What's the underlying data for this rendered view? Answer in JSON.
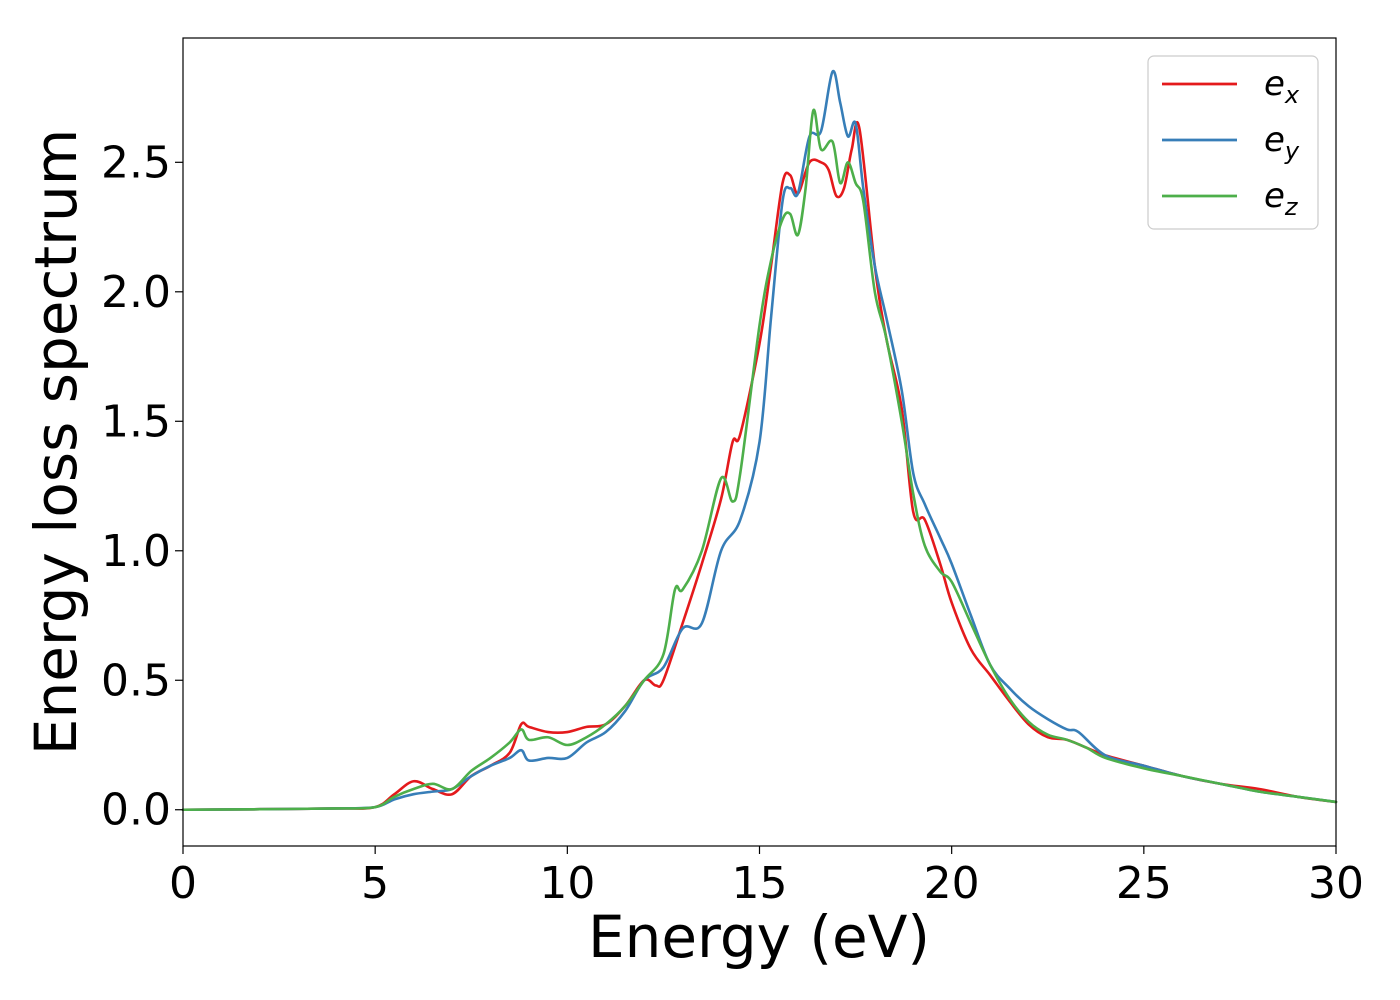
{
  "chart_data": {
    "type": "line",
    "title": "",
    "xlabel": "Energy (eV)",
    "ylabel": "Energy loss spectrum",
    "xlim": [
      0,
      30
    ],
    "ylim": [
      -0.14,
      2.98
    ],
    "xticks": [
      0,
      5,
      10,
      15,
      20,
      25,
      30
    ],
    "xtick_labels": [
      "0",
      "5",
      "10",
      "15",
      "20",
      "25",
      "30"
    ],
    "yticks": [
      0.0,
      0.5,
      1.0,
      1.5,
      2.0,
      2.5
    ],
    "ytick_labels": [
      "0.0",
      "0.5",
      "1.0",
      "1.5",
      "2.0",
      "2.5"
    ],
    "grid": false,
    "legend_position": "top-right",
    "series": [
      {
        "name": "e_x",
        "label_base": "e",
        "label_sub": "x",
        "color": "#e41a1c",
        "x": [
          0,
          2,
          4,
          5,
          5.5,
          6,
          6.5,
          7,
          7.5,
          8,
          8.5,
          8.8,
          9,
          9.5,
          10,
          10.5,
          11,
          11.5,
          12,
          12.3,
          12.5,
          13,
          13.5,
          14,
          14.3,
          14.5,
          15,
          15.3,
          15.6,
          15.8,
          16,
          16.3,
          16.6,
          16.8,
          17,
          17.2,
          17.4,
          17.6,
          18,
          18.3,
          18.7,
          19,
          19.3,
          19.7,
          20,
          20.5,
          21,
          21.5,
          22,
          22.5,
          23,
          23.5,
          24,
          25,
          26,
          27,
          28,
          29,
          30
        ],
        "y": [
          0,
          0.002,
          0.005,
          0.01,
          0.06,
          0.11,
          0.08,
          0.06,
          0.13,
          0.17,
          0.22,
          0.33,
          0.32,
          0.3,
          0.3,
          0.32,
          0.33,
          0.4,
          0.5,
          0.48,
          0.5,
          0.72,
          0.95,
          1.2,
          1.42,
          1.45,
          1.8,
          2.1,
          2.42,
          2.45,
          2.38,
          2.5,
          2.5,
          2.47,
          2.37,
          2.4,
          2.55,
          2.63,
          2.1,
          1.82,
          1.55,
          1.15,
          1.12,
          0.95,
          0.8,
          0.62,
          0.52,
          0.42,
          0.33,
          0.28,
          0.27,
          0.24,
          0.21,
          0.17,
          0.13,
          0.1,
          0.08,
          0.05,
          0.03
        ]
      },
      {
        "name": "e_y",
        "label_base": "e",
        "label_sub": "y",
        "color": "#377eb8",
        "x": [
          0,
          2,
          4,
          5,
          5.5,
          6,
          6.5,
          7,
          7.5,
          8,
          8.5,
          8.8,
          9,
          9.5,
          10,
          10.5,
          11,
          11.5,
          12,
          12.5,
          13,
          13.5,
          14,
          14.5,
          15,
          15.3,
          15.6,
          15.8,
          16,
          16.3,
          16.6,
          16.9,
          17.1,
          17.3,
          17.5,
          17.7,
          18,
          18.3,
          18.7,
          19,
          19.3,
          19.7,
          20,
          20.5,
          21,
          21.5,
          22,
          22.5,
          23,
          23.3,
          24,
          25,
          26,
          27,
          28,
          29,
          30
        ],
        "y": [
          0,
          0.002,
          0.005,
          0.01,
          0.04,
          0.06,
          0.07,
          0.08,
          0.13,
          0.17,
          0.2,
          0.23,
          0.19,
          0.2,
          0.2,
          0.26,
          0.3,
          0.38,
          0.5,
          0.55,
          0.7,
          0.72,
          1.0,
          1.12,
          1.42,
          1.9,
          2.35,
          2.4,
          2.38,
          2.6,
          2.62,
          2.85,
          2.73,
          2.6,
          2.65,
          2.4,
          2.1,
          1.9,
          1.62,
          1.3,
          1.18,
          1.05,
          0.95,
          0.75,
          0.56,
          0.47,
          0.4,
          0.35,
          0.31,
          0.3,
          0.21,
          0.17,
          0.13,
          0.1,
          0.07,
          0.05,
          0.03
        ]
      },
      {
        "name": "e_z",
        "label_base": "e",
        "label_sub": "z",
        "color": "#4daf4a",
        "x": [
          0,
          2,
          4,
          5,
          5.5,
          6,
          6.5,
          7,
          7.5,
          8,
          8.5,
          8.8,
          9,
          9.5,
          10,
          10.5,
          11,
          11.5,
          12,
          12.5,
          12.8,
          13,
          13.5,
          14,
          14.3,
          14.5,
          15,
          15.3,
          15.6,
          15.8,
          16,
          16.2,
          16.4,
          16.6,
          16.9,
          17.1,
          17.3,
          17.5,
          17.7,
          18,
          18.3,
          18.7,
          19,
          19.3,
          19.7,
          20,
          20.5,
          21,
          21.5,
          22,
          22.5,
          23,
          23.5,
          24,
          25,
          26,
          27,
          28,
          29,
          30
        ],
        "y": [
          0,
          0.002,
          0.005,
          0.01,
          0.05,
          0.08,
          0.1,
          0.08,
          0.15,
          0.2,
          0.26,
          0.31,
          0.27,
          0.28,
          0.25,
          0.28,
          0.33,
          0.4,
          0.5,
          0.6,
          0.85,
          0.85,
          1.0,
          1.28,
          1.19,
          1.3,
          1.87,
          2.12,
          2.28,
          2.3,
          2.22,
          2.4,
          2.7,
          2.55,
          2.58,
          2.42,
          2.5,
          2.42,
          2.35,
          2.0,
          1.82,
          1.5,
          1.22,
          1.02,
          0.92,
          0.88,
          0.72,
          0.56,
          0.43,
          0.34,
          0.29,
          0.27,
          0.24,
          0.2,
          0.16,
          0.13,
          0.1,
          0.07,
          0.05,
          0.03
        ]
      }
    ]
  }
}
